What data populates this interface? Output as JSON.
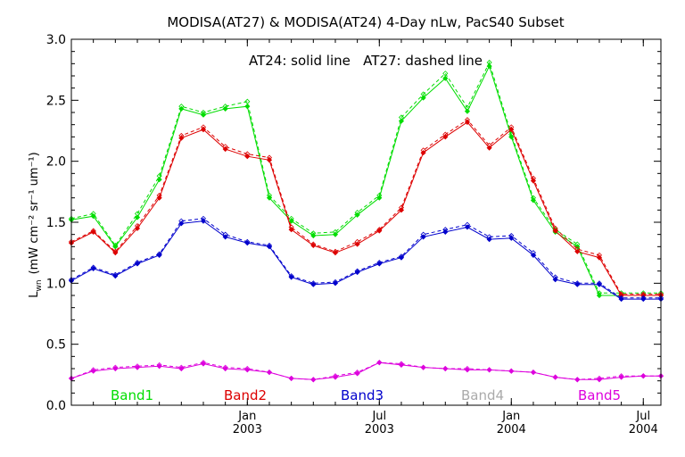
{
  "chart_data": {
    "type": "line",
    "title": "MODISA(AT27) & MODISA(AT24) 4-Day nLw, PacS40 Subset",
    "annotation": "AT24: solid line   AT27: dashed line",
    "ylabel": "Lwn (mW cm-2 sr-1 um-1)",
    "ylabel_main": "L",
    "ylabel_sub": "wn",
    "ylabel_units": "(mW cm⁻² sr⁻¹ um⁻¹)",
    "ylim": [
      0.0,
      3.0
    ],
    "yticks": [
      "0.0",
      "0.5",
      "1.0",
      "1.5",
      "2.0",
      "2.5",
      "3.0"
    ],
    "x_ticks": [
      {
        "month": "Jan",
        "year": "2003",
        "t": 7
      },
      {
        "month": "Jul",
        "year": "2003",
        "t": 13
      },
      {
        "month": "Jan",
        "year": "2004",
        "t": 19
      },
      {
        "month": "Jul",
        "year": "2004",
        "t": 25
      }
    ],
    "xlim": [
      -1,
      25.8
    ],
    "x": [
      -1,
      0,
      1,
      2,
      3,
      4,
      5,
      6,
      7,
      8,
      9,
      10,
      11,
      12,
      13,
      14,
      15,
      16,
      17,
      18,
      19,
      20,
      21,
      22,
      23,
      24,
      25,
      25.8
    ],
    "series": [
      {
        "name": "Band1",
        "color": "#00dd00",
        "at24": [
          1.52,
          1.55,
          1.3,
          1.54,
          1.85,
          2.43,
          2.38,
          2.43,
          2.45,
          1.7,
          1.51,
          1.39,
          1.4,
          1.56,
          1.7,
          2.33,
          2.52,
          2.68,
          2.41,
          2.78,
          2.2,
          1.68,
          1.42,
          1.3,
          0.9,
          0.9,
          0.9,
          0.9
        ],
        "at27": [
          1.53,
          1.57,
          1.31,
          1.57,
          1.88,
          2.45,
          2.4,
          2.45,
          2.49,
          1.72,
          1.53,
          1.41,
          1.42,
          1.58,
          1.72,
          2.36,
          2.55,
          2.72,
          2.44,
          2.81,
          2.22,
          1.7,
          1.44,
          1.32,
          0.92,
          0.92,
          0.92,
          0.92
        ]
      },
      {
        "name": "Band2",
        "color": "#dd0000",
        "at24": [
          1.33,
          1.42,
          1.25,
          1.45,
          1.7,
          2.19,
          2.26,
          2.1,
          2.04,
          2.01,
          1.44,
          1.31,
          1.25,
          1.32,
          1.43,
          1.6,
          2.07,
          2.2,
          2.32,
          2.11,
          2.26,
          1.84,
          1.43,
          1.26,
          1.21,
          0.9,
          0.9,
          0.9
        ],
        "at27": [
          1.34,
          1.43,
          1.26,
          1.47,
          1.72,
          2.21,
          2.28,
          2.12,
          2.06,
          2.03,
          1.46,
          1.32,
          1.26,
          1.34,
          1.44,
          1.62,
          2.09,
          2.22,
          2.34,
          2.13,
          2.28,
          1.86,
          1.45,
          1.28,
          1.23,
          0.91,
          0.91,
          0.91
        ]
      },
      {
        "name": "Band3",
        "color": "#0000cc",
        "at24": [
          1.02,
          1.12,
          1.06,
          1.16,
          1.23,
          1.49,
          1.51,
          1.38,
          1.33,
          1.3,
          1.05,
          0.99,
          1.0,
          1.09,
          1.16,
          1.21,
          1.38,
          1.42,
          1.46,
          1.36,
          1.37,
          1.23,
          1.03,
          0.99,
          0.99,
          0.87,
          0.87,
          0.87
        ],
        "at27": [
          1.03,
          1.13,
          1.07,
          1.17,
          1.24,
          1.51,
          1.53,
          1.4,
          1.34,
          1.31,
          1.06,
          1.0,
          1.01,
          1.1,
          1.17,
          1.22,
          1.4,
          1.44,
          1.48,
          1.38,
          1.39,
          1.25,
          1.05,
          1.0,
          1.0,
          0.88,
          0.88,
          0.88
        ]
      },
      {
        "name": "Band4",
        "color": "#aaaaaa",
        "at24": [],
        "at27": []
      },
      {
        "name": "Band5",
        "color": "#dd00dd",
        "at24": [
          0.22,
          0.28,
          0.3,
          0.31,
          0.32,
          0.3,
          0.34,
          0.3,
          0.29,
          0.27,
          0.22,
          0.21,
          0.23,
          0.26,
          0.35,
          0.33,
          0.31,
          0.3,
          0.29,
          0.29,
          0.28,
          0.27,
          0.23,
          0.21,
          0.21,
          0.23,
          0.24,
          0.24
        ],
        "at27": [
          0.22,
          0.29,
          0.31,
          0.32,
          0.33,
          0.31,
          0.35,
          0.31,
          0.3,
          0.27,
          0.22,
          0.21,
          0.24,
          0.27,
          0.35,
          0.34,
          0.31,
          0.3,
          0.3,
          0.29,
          0.28,
          0.27,
          0.23,
          0.21,
          0.22,
          0.24,
          0.24,
          0.24
        ]
      }
    ]
  }
}
